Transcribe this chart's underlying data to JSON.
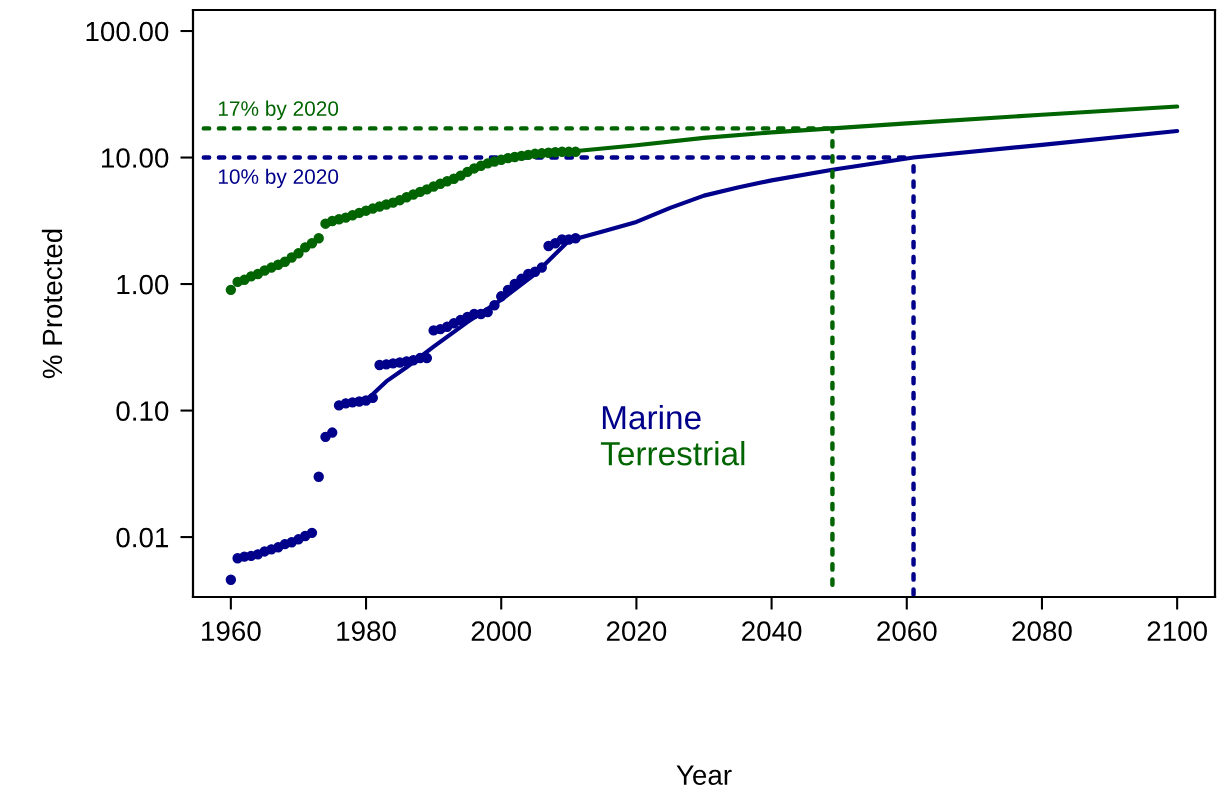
{
  "chart_data": {
    "type": "scatter",
    "xlabel": "Year",
    "ylabel": "% Protected",
    "log": "y",
    "xlim": [
      1954.4,
      2105.6
    ],
    "xticks": [
      1960,
      1980,
      2000,
      2020,
      2040,
      2060,
      2080,
      2100
    ],
    "ylim": [
      0.00336,
      146.6
    ],
    "yticks": [
      {
        "value": 0.01,
        "label": "0.01"
      },
      {
        "value": 0.1,
        "label": "0.10"
      },
      {
        "value": 1,
        "label": "1.00"
      },
      {
        "value": 10,
        "label": "10.00"
      },
      {
        "value": 100,
        "label": "100.00"
      }
    ],
    "grid": false,
    "legend": "bottom",
    "annotations": [
      {
        "text": "17% by 2020",
        "x": 1958,
        "y": 17
      },
      {
        "text": "10% by 2020",
        "x": 1958,
        "y": 10
      }
    ],
    "series": [
      {
        "name": "Marine",
        "marker": "circle",
        "color": "#00008b",
        "x": [
          1960,
          1961,
          1962,
          1963,
          1964,
          1965,
          1966,
          1967,
          1968,
          1969,
          1970,
          1971,
          1972,
          1973,
          1974,
          1975,
          1976,
          1977,
          1978,
          1979,
          1980,
          1981,
          1982,
          1983,
          1984,
          1985,
          1986,
          1987,
          1988,
          1989,
          1990,
          1991,
          1992,
          1993,
          1994,
          1995,
          1996,
          1997,
          1998,
          1999,
          2000,
          2001,
          2002,
          2003,
          2004,
          2005,
          2006,
          2007,
          2008,
          2009,
          2010,
          2011
        ],
        "values": [
          0.0046,
          0.0068,
          0.007,
          0.0071,
          0.0073,
          0.0077,
          0.008,
          0.0083,
          0.0088,
          0.0091,
          0.0096,
          0.0102,
          0.0108,
          0.03,
          0.062,
          0.067,
          0.11,
          0.114,
          0.116,
          0.118,
          0.12,
          0.126,
          0.229,
          0.232,
          0.236,
          0.24,
          0.245,
          0.25,
          0.26,
          0.26,
          0.43,
          0.44,
          0.46,
          0.49,
          0.52,
          0.55,
          0.58,
          0.58,
          0.6,
          0.68,
          0.8,
          0.9,
          1.0,
          1.1,
          1.2,
          1.25,
          1.35,
          2.0,
          2.1,
          2.25,
          2.25,
          2.3
        ]
      },
      {
        "name": "Terrestrial",
        "marker": "circle",
        "color": "#006400",
        "x": [
          1960,
          1961,
          1962,
          1963,
          1964,
          1965,
          1966,
          1967,
          1968,
          1969,
          1970,
          1971,
          1972,
          1973,
          1974,
          1975,
          1976,
          1977,
          1978,
          1979,
          1980,
          1981,
          1982,
          1983,
          1984,
          1985,
          1986,
          1987,
          1988,
          1989,
          1990,
          1991,
          1992,
          1993,
          1994,
          1995,
          1996,
          1997,
          1998,
          1999,
          2000,
          2001,
          2002,
          2003,
          2004,
          2005,
          2006,
          2007,
          2008,
          2009,
          2010,
          2011
        ],
        "values": [
          0.9,
          1.04,
          1.08,
          1.15,
          1.2,
          1.28,
          1.35,
          1.42,
          1.5,
          1.62,
          1.75,
          1.95,
          2.1,
          2.3,
          3.0,
          3.15,
          3.25,
          3.35,
          3.5,
          3.65,
          3.8,
          3.95,
          4.1,
          4.25,
          4.4,
          4.6,
          4.85,
          5.1,
          5.35,
          5.6,
          5.9,
          6.2,
          6.5,
          6.8,
          7.2,
          7.7,
          8.2,
          8.6,
          9.0,
          9.3,
          9.6,
          9.9,
          10.1,
          10.3,
          10.5,
          10.7,
          10.8,
          10.9,
          11.0,
          11.1,
          11.1,
          11.1
        ]
      },
      {
        "type": "line",
        "line_style": "solid",
        "color": "#00008b",
        "x": [
          1980,
          1983,
          1986,
          1990,
          1995,
          2000,
          2005,
          2010,
          2015,
          2020,
          2025,
          2030,
          2035,
          2040,
          2049,
          2061,
          2080,
          2100
        ],
        "values": [
          0.12,
          0.17,
          0.22,
          0.32,
          0.5,
          0.75,
          1.2,
          2.2,
          2.6,
          3.1,
          4.0,
          5.0,
          5.8,
          6.6,
          8.0,
          10.0,
          12.6,
          16.2
        ]
      },
      {
        "type": "line",
        "line_style": "solid",
        "color": "#006400",
        "x": [
          2010,
          2020,
          2030,
          2040,
          2049,
          2060,
          2080,
          2100
        ],
        "values": [
          11.1,
          12.5,
          14.3,
          15.8,
          17,
          18.6,
          21.8,
          25.3
        ]
      },
      {
        "type": "line",
        "line_style": "dotted",
        "color": "#006400",
        "x": [
          1956,
          2049
        ],
        "values": [
          17,
          17
        ]
      },
      {
        "type": "line",
        "line_style": "dotted",
        "color": "#006400",
        "x": [
          2049,
          2049
        ],
        "values": [
          0.0042,
          17
        ]
      },
      {
        "type": "line",
        "line_style": "dotted",
        "color": "#00008b",
        "x": [
          1956,
          2061
        ],
        "values": [
          10,
          10
        ]
      },
      {
        "type": "line",
        "line_style": "dotted",
        "color": "#00008b",
        "x": [
          2061,
          2061
        ],
        "values": [
          0.0035,
          10
        ]
      }
    ]
  }
}
